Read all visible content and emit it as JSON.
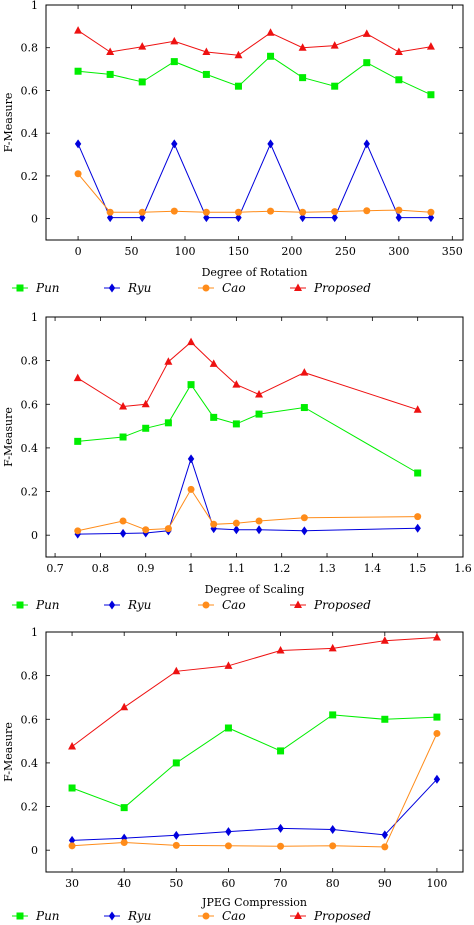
{
  "legend_entries": [
    "Pun",
    "Ryu",
    "Cao",
    "Proposed"
  ],
  "series_colors": {
    "Pun": "#00ee00",
    "Ryu": "#0000dd",
    "Cao": "#ff8c1a",
    "Proposed": "#ee1111"
  },
  "series_markers": {
    "Pun": "square",
    "Ryu": "diamond",
    "Cao": "circle",
    "Proposed": "triangle"
  },
  "chart_data": [
    {
      "type": "line",
      "xlabel": "Degree of Rotation",
      "ylabel": "F-Measure",
      "xlim": [
        -30,
        360
      ],
      "ylim": [
        -0.1,
        1.0
      ],
      "xticks": [
        0,
        50,
        100,
        150,
        200,
        250,
        300,
        350
      ],
      "xtick_labels": [
        "0",
        "50",
        "100",
        "150",
        "200",
        "250",
        "300",
        "350"
      ],
      "yticks": [
        0,
        0.2,
        0.4,
        0.6,
        0.8,
        1
      ],
      "ytick_labels": [
        "0",
        "0.2",
        "0.4",
        "0.6",
        "0.8",
        "1"
      ],
      "x": [
        0,
        30,
        60,
        90,
        120,
        150,
        180,
        210,
        240,
        270,
        300,
        330
      ],
      "legend": "below",
      "grid": false,
      "series": [
        {
          "name": "Pun",
          "values": [
            0.69,
            0.675,
            0.64,
            0.735,
            0.675,
            0.62,
            0.76,
            0.66,
            0.62,
            0.73,
            0.65,
            0.58
          ]
        },
        {
          "name": "Ryu",
          "values": [
            0.35,
            0.005,
            0.005,
            0.35,
            0.005,
            0.005,
            0.35,
            0.005,
            0.005,
            0.35,
            0.005,
            0.005
          ]
        },
        {
          "name": "Cao",
          "values": [
            0.21,
            0.03,
            0.03,
            0.035,
            0.03,
            0.03,
            0.035,
            0.03,
            0.033,
            0.037,
            0.04,
            0.03
          ]
        },
        {
          "name": "Proposed",
          "values": [
            0.88,
            0.78,
            0.805,
            0.83,
            0.78,
            0.765,
            0.87,
            0.8,
            0.81,
            0.865,
            0.78,
            0.805
          ]
        }
      ]
    },
    {
      "type": "line",
      "xlabel": "Degree of Scaling",
      "ylabel": "F-Measure",
      "xlim": [
        0.68,
        1.6
      ],
      "ylim": [
        -0.1,
        1.0
      ],
      "xticks": [
        0.7,
        0.8,
        0.9,
        1.0,
        1.1,
        1.2,
        1.3,
        1.4,
        1.5,
        1.6
      ],
      "xtick_labels": [
        "0.7",
        "0.8",
        "0.9",
        "1",
        "1.1",
        "1.2",
        "1.3",
        "1.4",
        "1.5",
        "1.6"
      ],
      "yticks": [
        0,
        0.2,
        0.4,
        0.6,
        0.8,
        1
      ],
      "ytick_labels": [
        "0",
        "0.2",
        "0.4",
        "0.6",
        "0.8",
        "1"
      ],
      "x": [
        0.75,
        0.85,
        0.9,
        0.95,
        1.0,
        1.05,
        1.1,
        1.15,
        1.25,
        1.5
      ],
      "legend": "below",
      "grid": false,
      "series": [
        {
          "name": "Pun",
          "values": [
            0.43,
            0.45,
            0.49,
            0.515,
            0.69,
            0.54,
            0.51,
            0.555,
            0.585,
            0.285
          ]
        },
        {
          "name": "Ryu",
          "values": [
            0.005,
            0.008,
            0.01,
            0.02,
            0.35,
            0.03,
            0.025,
            0.025,
            0.02,
            0.032
          ]
        },
        {
          "name": "Cao",
          "values": [
            0.02,
            0.065,
            0.025,
            0.03,
            0.21,
            0.05,
            0.055,
            0.065,
            0.08,
            0.085
          ]
        },
        {
          "name": "Proposed",
          "values": [
            0.72,
            0.59,
            0.6,
            0.795,
            0.885,
            0.785,
            0.69,
            0.645,
            0.745,
            0.575
          ]
        }
      ]
    },
    {
      "type": "line",
      "xlabel": "JPEG Compression",
      "ylabel": "F-Measure",
      "xlim": [
        25,
        105
      ],
      "ylim": [
        -0.1,
        1.0
      ],
      "xticks": [
        30,
        40,
        50,
        60,
        70,
        80,
        90,
        100
      ],
      "xtick_labels": [
        "30",
        "40",
        "50",
        "60",
        "70",
        "80",
        "90",
        "100"
      ],
      "yticks": [
        0,
        0.2,
        0.4,
        0.6,
        0.8,
        1
      ],
      "ytick_labels": [
        "0",
        "0.2",
        "0.4",
        "0.6",
        "0.8",
        "1"
      ],
      "x": [
        30,
        40,
        50,
        60,
        70,
        80,
        90,
        100
      ],
      "legend": "below",
      "grid": false,
      "series": [
        {
          "name": "Pun",
          "values": [
            0.285,
            0.195,
            0.4,
            0.56,
            0.455,
            0.62,
            0.6,
            0.61
          ]
        },
        {
          "name": "Ryu",
          "values": [
            0.045,
            0.055,
            0.068,
            0.085,
            0.1,
            0.095,
            0.07,
            0.325
          ]
        },
        {
          "name": "Cao",
          "values": [
            0.02,
            0.035,
            0.022,
            0.02,
            0.018,
            0.02,
            0.015,
            0.535
          ]
        },
        {
          "name": "Proposed",
          "values": [
            0.475,
            0.655,
            0.82,
            0.845,
            0.915,
            0.925,
            0.96,
            0.975
          ]
        }
      ]
    }
  ]
}
